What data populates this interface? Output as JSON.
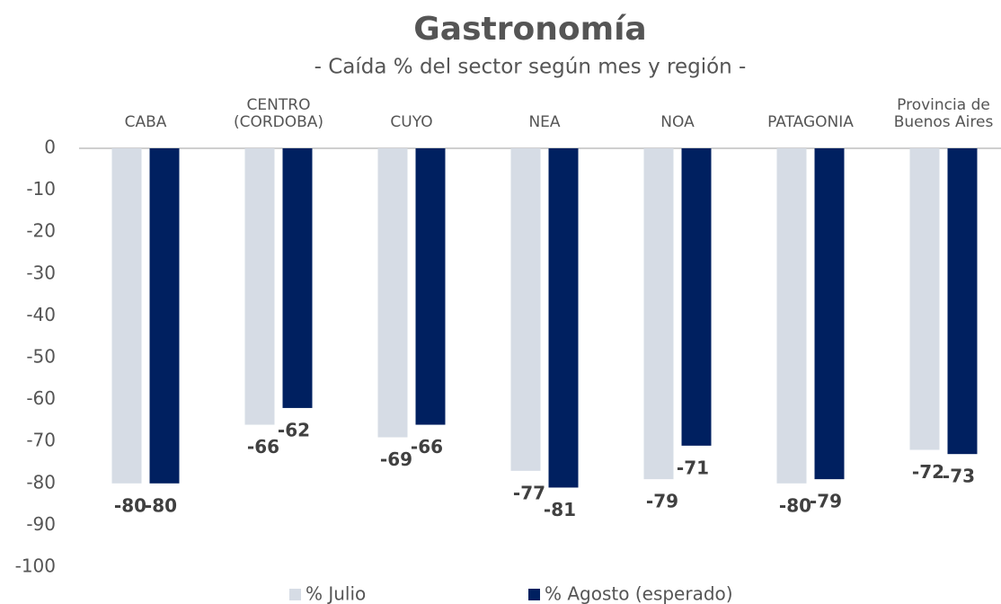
{
  "chart_data": {
    "type": "bar",
    "title": "Gastronomía",
    "subtitle": "- Caída % del sector según mes y región -",
    "categories": [
      "CABA",
      "CENTRO\n(CORDOBA)",
      "CUYO",
      "NEA",
      "NOA",
      "PATAGONIA",
      "Provincia de\nBuenos Aires"
    ],
    "series": [
      {
        "name": "% Julio",
        "color": "#d6dce5",
        "values": [
          -80,
          -66,
          -69,
          -77,
          -79,
          -80,
          -72
        ]
      },
      {
        "name": "% Agosto (esperado)",
        "color": "#002060",
        "values": [
          -80,
          -62,
          -66,
          -81,
          -71,
          -79,
          -73
        ]
      }
    ],
    "ylim": [
      -100,
      0
    ],
    "yticks": [
      0,
      -10,
      -20,
      -30,
      -40,
      -50,
      -60,
      -70,
      -80,
      -90,
      -100
    ],
    "grid": false
  }
}
